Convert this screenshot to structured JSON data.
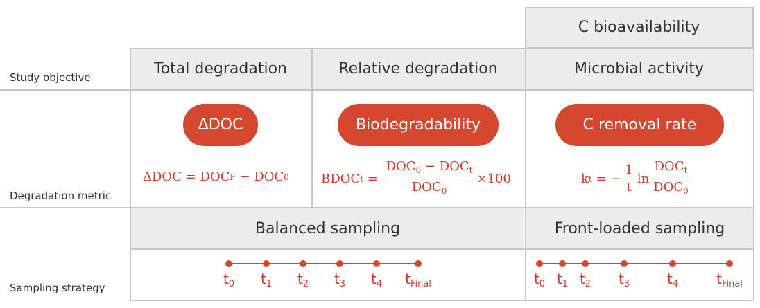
{
  "header": {
    "top_right": "C bioavailability",
    "col1": "Total degradation",
    "col2": "Relative degradation",
    "col3": "Microbial activity"
  },
  "row_labels": {
    "objective": "Study objective",
    "metric": "Degradation metric",
    "sampling": "Sampling strategy"
  },
  "metrics": {
    "m1": "ΔDOC",
    "m2": "Biodegradability",
    "m3": "C removal rate"
  },
  "formulas": {
    "f1": {
      "lhs": "ΔDOC = ",
      "a": "DOC",
      "a_sub": "F",
      "minus": " − ",
      "b": "DOC",
      "b_sub": "0"
    },
    "f2": {
      "lhs": "BDOC",
      "lhs_sub": "t",
      "eq": " = ",
      "num_a": "DOC",
      "num_a_sub": "0",
      "num_minus": " − ",
      "num_b": "DOC",
      "num_b_sub": "t",
      "den": "DOC",
      "den_sub": "0",
      "times": "×100"
    },
    "f3": {
      "lhs": "k",
      "lhs_sub": "t",
      "eq": " = −",
      "one": "1",
      "t": "t",
      "ln": "ln",
      "num": "DOC",
      "num_sub": "t",
      "den": "DOC",
      "den_sub": "0"
    }
  },
  "sampling": {
    "balanced": "Balanced sampling",
    "front": "Front-loaded sampling",
    "balanced_ticks": [
      {
        "t": "t",
        "sub": "0"
      },
      {
        "t": "t",
        "sub": "1"
      },
      {
        "t": "t",
        "sub": "2"
      },
      {
        "t": "t",
        "sub": "3"
      },
      {
        "t": "t",
        "sub": "4"
      },
      {
        "t": "t",
        "sub": "Final"
      }
    ],
    "front_ticks": [
      {
        "t": "t",
        "sub": "0"
      },
      {
        "t": "t",
        "sub": "1"
      },
      {
        "t": "t",
        "sub": "2"
      },
      {
        "t": "t",
        "sub": "3"
      },
      {
        "t": "t",
        "sub": "4"
      },
      {
        "t": "t",
        "sub": "Final"
      }
    ]
  },
  "colors": {
    "accent": "#d5472f",
    "header_bg": "#ececec",
    "grid": "#c6c6c6"
  }
}
